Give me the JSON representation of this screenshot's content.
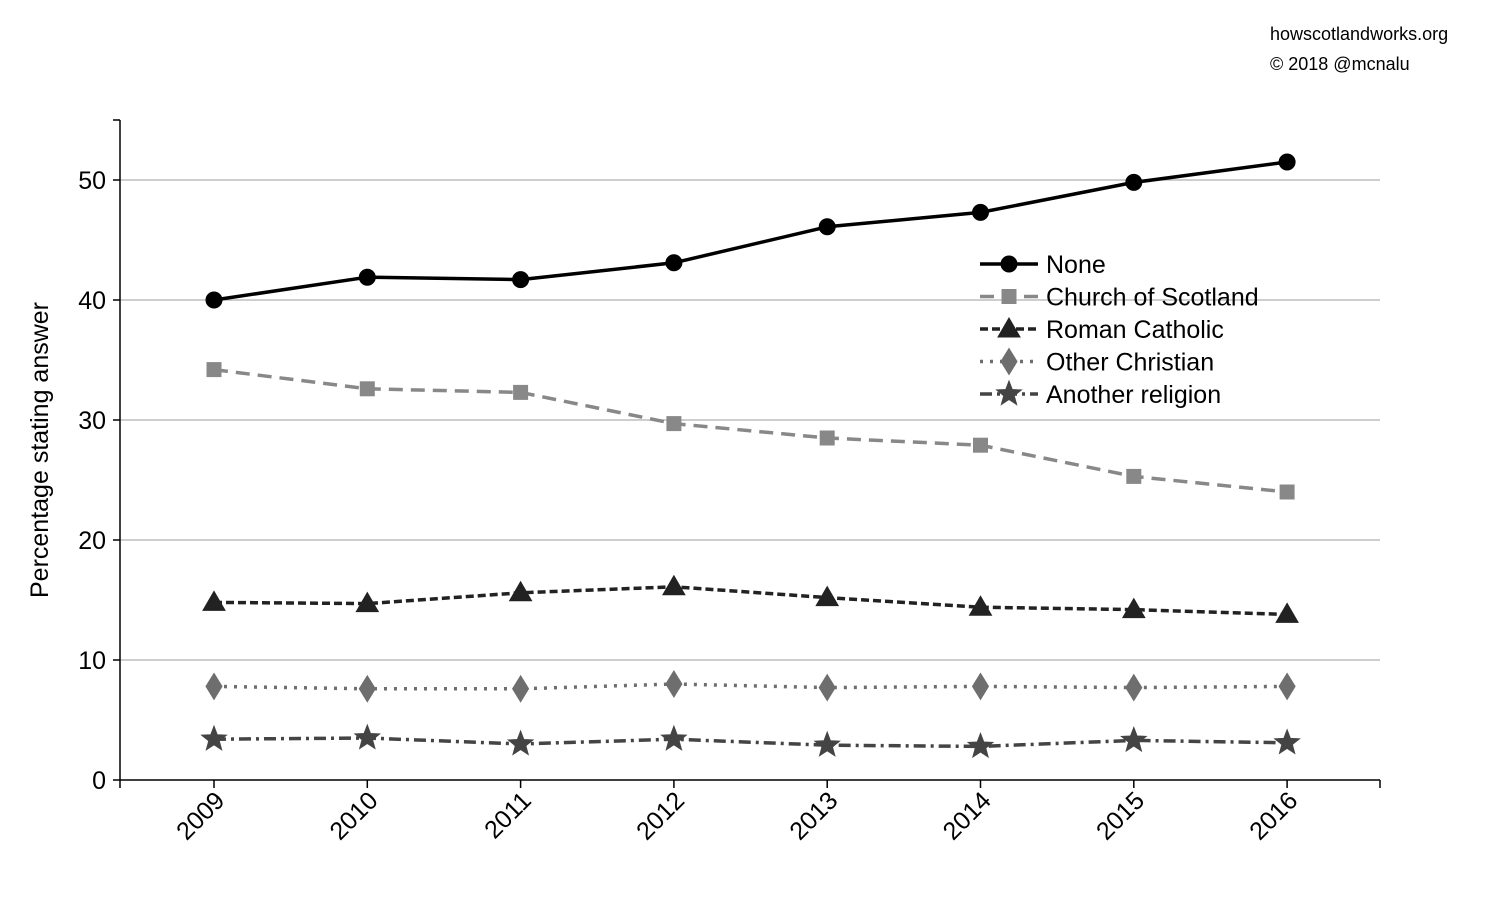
{
  "credit": {
    "site": "howscotlandworks.org",
    "copyright": "© 2018  @mcnalu"
  },
  "chart_data": {
    "type": "line",
    "title": "",
    "xlabel": "",
    "ylabel": "Percentage stating answer",
    "categories": [
      "2009",
      "2010",
      "2011",
      "2012",
      "2013",
      "2014",
      "2015",
      "2016"
    ],
    "ylim": [
      0,
      55
    ],
    "yticks": [
      0,
      10,
      20,
      30,
      40,
      50
    ],
    "grid": "horizontal",
    "legend_position": "upper-right",
    "series": [
      {
        "name": "None",
        "values": [
          40.0,
          41.9,
          41.7,
          43.1,
          46.1,
          47.3,
          49.8,
          51.5
        ],
        "color": "#000000",
        "dash": "solid",
        "marker": "circle"
      },
      {
        "name": "Church of Scotland",
        "values": [
          34.2,
          32.6,
          32.3,
          29.7,
          28.5,
          27.9,
          25.3,
          24.0
        ],
        "color": "#888888",
        "dash": "dashed",
        "marker": "square"
      },
      {
        "name": "Roman Catholic",
        "values": [
          14.8,
          14.7,
          15.6,
          16.1,
          15.2,
          14.4,
          14.2,
          13.8
        ],
        "color": "#222222",
        "dash": "dashed-fine",
        "marker": "triangle"
      },
      {
        "name": "Other Christian",
        "values": [
          7.8,
          7.6,
          7.6,
          8.0,
          7.7,
          7.8,
          7.7,
          7.8
        ],
        "color": "#6e6e6e",
        "dash": "dotted",
        "marker": "diamond"
      },
      {
        "name": "Another religion",
        "values": [
          3.4,
          3.5,
          3.0,
          3.4,
          2.9,
          2.8,
          3.3,
          3.1
        ],
        "color": "#444444",
        "dash": "dash-dot",
        "marker": "star"
      }
    ]
  }
}
